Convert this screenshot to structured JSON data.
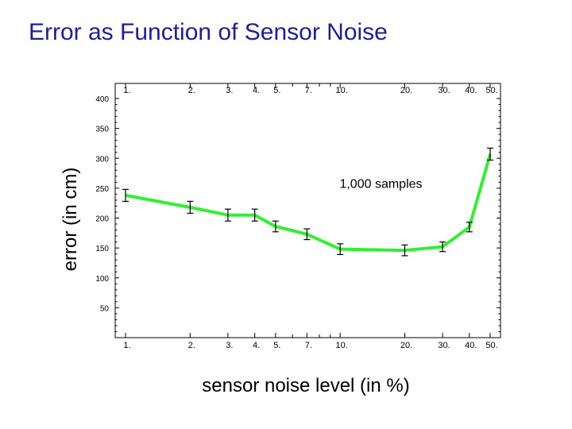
{
  "title": "Error as Function of Sensor Noise",
  "chart_data": {
    "type": "line",
    "title": "Error as Function of Sensor Noise",
    "xlabel": "sensor noise level (in %)",
    "ylabel": "error (in cm)",
    "x_scale": "log",
    "x_ticks": [
      1,
      2,
      3,
      4,
      5,
      7,
      10,
      20,
      30,
      40,
      50
    ],
    "x_tick_labels": [
      "1.",
      "2.",
      "3.",
      "4.",
      "5.",
      "7.",
      "10.",
      "20.",
      "30.",
      "40.",
      "50."
    ],
    "y_ticks": [
      50,
      100,
      150,
      200,
      250,
      300,
      350,
      400
    ],
    "xlim": [
      1,
      50
    ],
    "ylim": [
      0,
      400
    ],
    "grid": false,
    "series": [
      {
        "x": [
          1,
          2,
          3,
          4,
          5,
          7,
          10,
          20,
          30,
          40,
          50
        ],
        "y": [
          238,
          218,
          205,
          205,
          186,
          173,
          148,
          146,
          152,
          185,
          307
        ],
        "err": [
          10,
          10,
          10,
          10,
          9,
          9,
          9,
          9,
          8,
          8,
          10
        ],
        "color": "#33ee33"
      }
    ],
    "annotations": [
      {
        "text": "1,000 samples",
        "x": 20,
        "y": 257
      }
    ]
  }
}
